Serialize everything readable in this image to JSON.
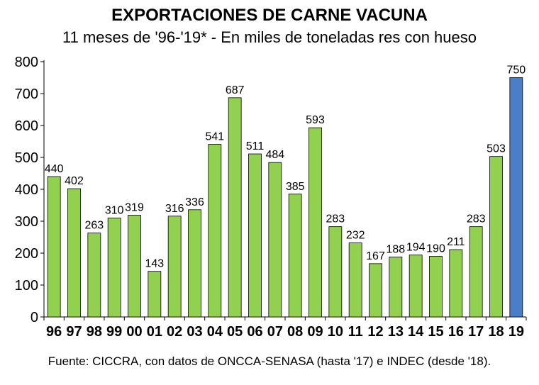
{
  "chart_data": {
    "type": "bar",
    "title": "EXPORTACIONES DE CARNE VACUNA",
    "subtitle": "11 meses de '96-'19* - En miles de toneladas res con hueso",
    "source": "Fuente: CICCRA, con datos de ONCCA-SENASA (hasta '17) e INDEC (desde '18).",
    "categories": [
      "96",
      "97",
      "98",
      "99",
      "00",
      "01",
      "02",
      "03",
      "04",
      "05",
      "06",
      "07",
      "08",
      "09",
      "10",
      "11",
      "12",
      "13",
      "14",
      "15",
      "16",
      "17",
      "18",
      "19"
    ],
    "values": [
      440,
      402,
      263,
      310,
      319,
      143,
      316,
      336,
      541,
      687,
      511,
      484,
      385,
      593,
      283,
      232,
      167,
      188,
      194,
      190,
      211,
      283,
      503,
      750
    ],
    "data_labels": [
      "440",
      "402",
      "263",
      "310",
      "319",
      "143",
      "316",
      "336",
      "541",
      "687",
      "511",
      "484",
      "385",
      "593",
      "283",
      "232",
      "167",
      "188",
      "194",
      "190",
      "211",
      "283",
      "503",
      "750"
    ],
    "ylim": [
      0,
      800
    ],
    "yticks": [
      "0",
      "100",
      "200",
      "300",
      "400",
      "500",
      "600",
      "700",
      "800"
    ],
    "grid": false,
    "colors": {
      "default": "#92D050",
      "highlight": "#4A7EC9",
      "highlight_index": 23
    }
  }
}
